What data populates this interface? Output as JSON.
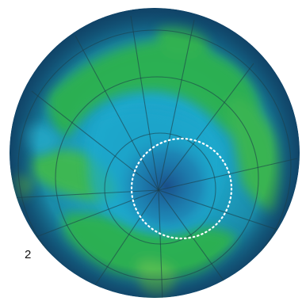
{
  "figure": {
    "panel_label": "2",
    "colors": {
      "ocean_dark": "#0d4f73",
      "rim": "#123f63",
      "cyan": "#1ea8cc",
      "green": "#2fb34a",
      "light_green": "#5cc24a",
      "center_dark": "#1a4f8a",
      "grid": "#1d3f4a",
      "marker": "#ffffff"
    }
  }
}
